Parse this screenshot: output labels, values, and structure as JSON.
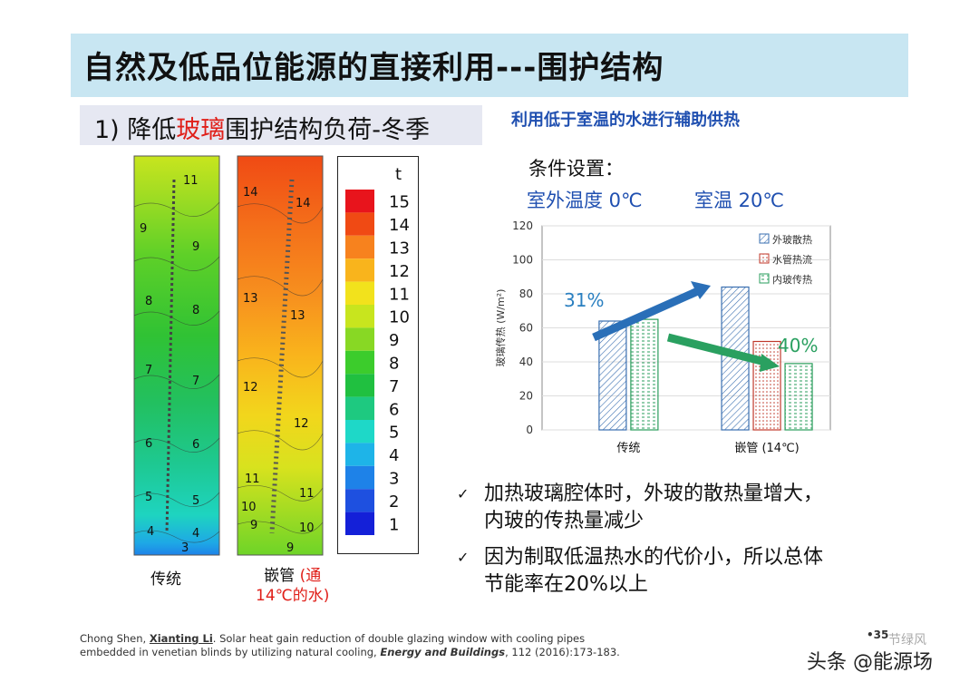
{
  "slide": {
    "title": "自然及低品位能源的直接利用---围护结构",
    "subtitle_prefix": "1) 降低",
    "subtitle_highlight": "玻璃",
    "subtitle_suffix": "围护结构负荷-冬季",
    "side_note": "利用低于室温的水进行辅助供热",
    "conditions_label": "条件设置：",
    "outdoor_temp": "室外温度 0℃",
    "room_temp": "室温 20℃",
    "page_number": "•35"
  },
  "contour": {
    "legend_title": "t",
    "legend_values": [
      "15",
      "14",
      "13",
      "12",
      "11",
      "10",
      "9",
      "8",
      "7",
      "6",
      "5",
      "4",
      "3",
      "2",
      "1"
    ],
    "legend_colors": [
      "#e8141c",
      "#f04a14",
      "#f7821e",
      "#f9b41c",
      "#f2e21c",
      "#c8e51e",
      "#88d824",
      "#3ccc2c",
      "#20c040",
      "#1ec980",
      "#1ed8c8",
      "#1eb4e8",
      "#1e82e8",
      "#1e50e0",
      "#1420d8"
    ],
    "traditional_labels": [
      "11",
      "9",
      "9",
      "8",
      "8",
      "7",
      "7",
      "6",
      "6",
      "5",
      "5",
      "4",
      "4",
      "3"
    ],
    "embedded_labels": [
      "14",
      "14",
      "13",
      "13",
      "12",
      "12",
      "11",
      "11",
      "10",
      "9",
      "10",
      "9"
    ],
    "caption_traditional": "传统",
    "caption_embedded_1": "嵌管",
    "caption_embedded_2": "(通",
    "caption_embedded_3": "14℃的水)"
  },
  "chart_data": {
    "type": "bar",
    "categories": [
      "传统",
      "嵌管 (14℃)"
    ],
    "series": [
      {
        "name": "外玻散热",
        "values": [
          64,
          84
        ],
        "color": "#3a6fb0"
      },
      {
        "name": "水管热流",
        "values": [
          0,
          52
        ],
        "color": "#c0392b"
      },
      {
        "name": "内玻传热",
        "values": [
          65,
          39
        ],
        "color": "#2a9d5c"
      }
    ],
    "ylabel": "玻璃传热 (W/m²)",
    "ylim": [
      0,
      120
    ],
    "yticks": [
      0,
      20,
      40,
      60,
      80,
      100,
      120
    ],
    "legend_position": "top-right",
    "annotations": [
      {
        "text": "31%",
        "color": "#2a7fc0"
      },
      {
        "text": "40%",
        "color": "#2aa060"
      }
    ]
  },
  "bullets": [
    {
      "line1": "加热玻璃腔体时，外玻的散热量增大，",
      "line2": "内玻的传热量减少"
    },
    {
      "line1": "因为制取低温热水的代价小，所以总体",
      "line2": "节能率在20%以上"
    }
  ],
  "citation": {
    "authors_plain": "Chong Shen, ",
    "author_bold": "Xianting Li",
    "title_part": ". Solar heat gain reduction of double glazing window with cooling pipes",
    "line2_plain": "embedded in venetian blinds by utilizing natural cooling, ",
    "journal": "Energy and Buildings",
    "line2_end": ", 112 (2016):173-183."
  },
  "watermark": {
    "main": "头条 @能源场",
    "faint": "节绿风"
  }
}
